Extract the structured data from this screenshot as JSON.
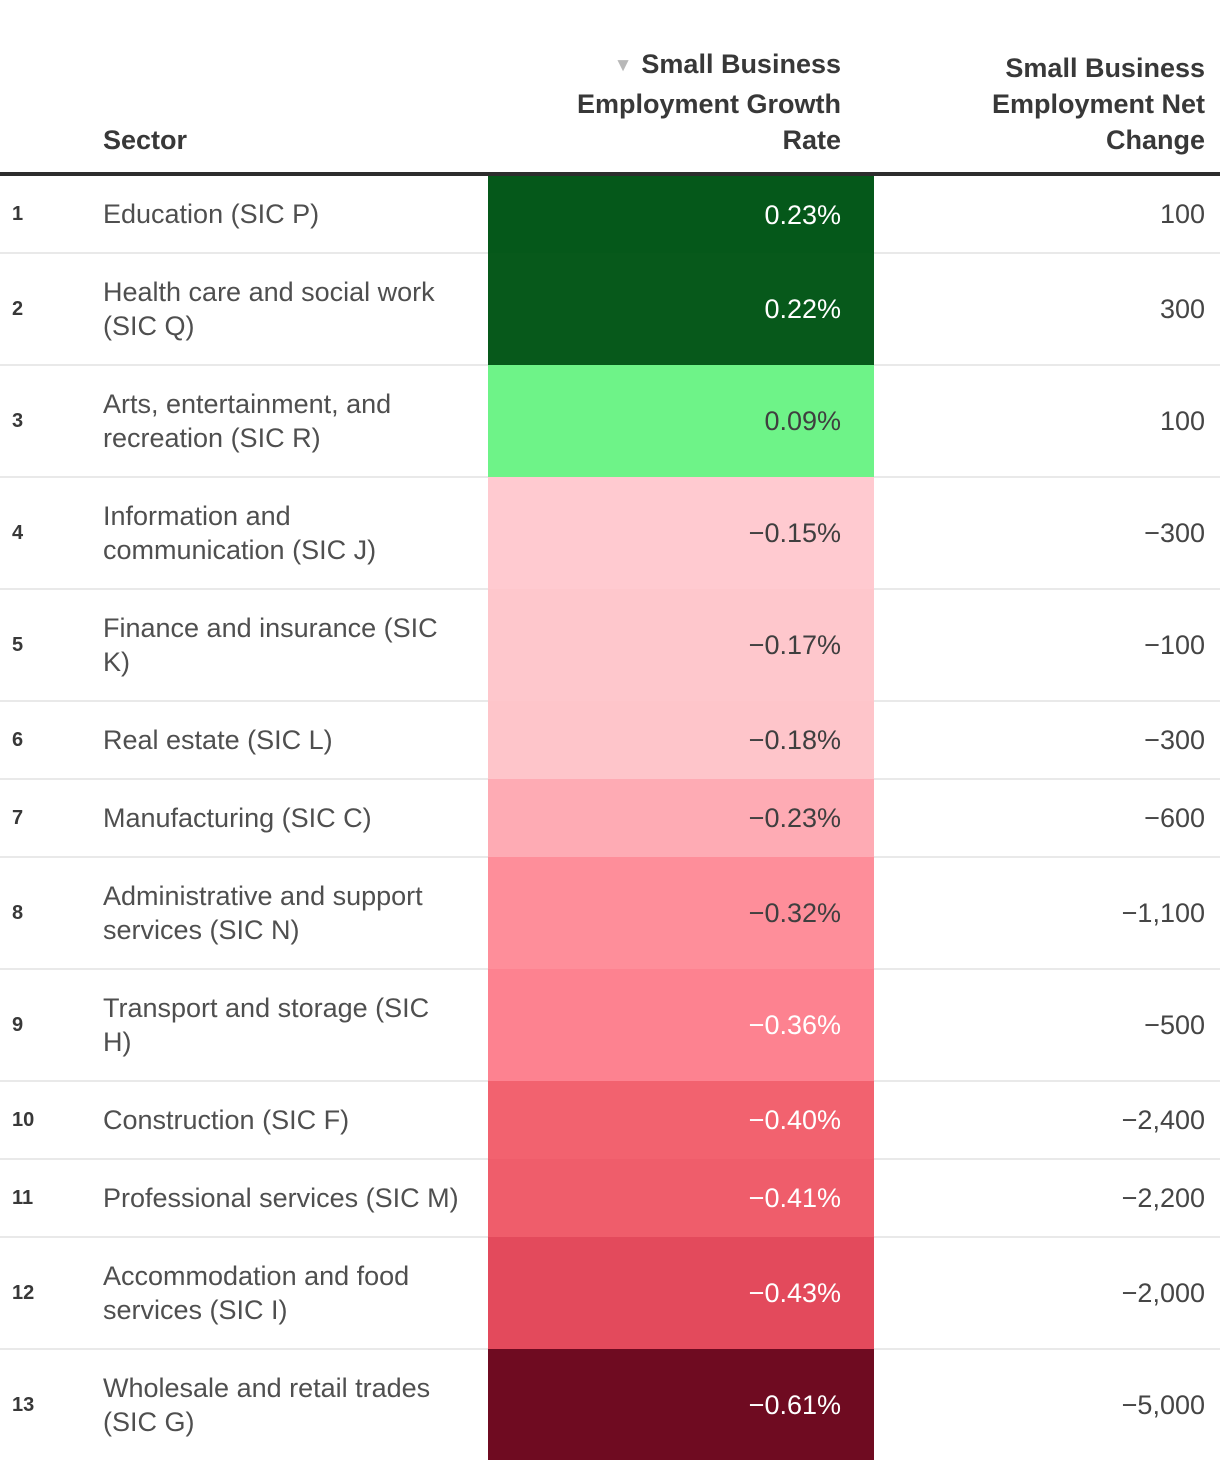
{
  "table": {
    "header": {
      "sector_label": "Sector",
      "growth_label": "Small Business Employment Growth Rate",
      "net_label": "Small Business Employment Net Change",
      "sort_icon": "▼",
      "sort_icon_color": "#b8b8b8"
    },
    "rows": [
      {
        "rank": "1",
        "sector": "Education (SIC P)",
        "growth": "0.23%",
        "net": "100",
        "bg": "#05581a",
        "fg": "#ffffff"
      },
      {
        "rank": "2",
        "sector": "Health care and social work (SIC Q)",
        "growth": "0.22%",
        "net": "300",
        "bg": "#07591b",
        "fg": "#ffffff"
      },
      {
        "rank": "3",
        "sector": "Arts, entertainment, and recreation (SIC R)",
        "growth": "0.09%",
        "net": "100",
        "bg": "#6ef388",
        "fg": "#3f3f3f"
      },
      {
        "rank": "4",
        "sector": "Information and communication (SIC J)",
        "growth": "−0.15%",
        "net": "−300",
        "bg": "#ffcad0",
        "fg": "#3f3f3f"
      },
      {
        "rank": "5",
        "sector": "Finance and insurance (SIC K)",
        "growth": "−0.17%",
        "net": "−100",
        "bg": "#fec7cc",
        "fg": "#3f3f3f"
      },
      {
        "rank": "6",
        "sector": "Real estate (SIC L)",
        "growth": "−0.18%",
        "net": "−300",
        "bg": "#fec5ca",
        "fg": "#3f3f3f"
      },
      {
        "rank": "7",
        "sector": "Manufacturing (SIC C)",
        "growth": "−0.23%",
        "net": "−600",
        "bg": "#feabb4",
        "fg": "#3f3f3f"
      },
      {
        "rank": "8",
        "sector": "Administrative and support services (SIC N)",
        "growth": "−0.32%",
        "net": "−1,100",
        "bg": "#fe8e9a",
        "fg": "#3f3f3f"
      },
      {
        "rank": "9",
        "sector": "Transport and storage (SIC H)",
        "growth": "−0.36%",
        "net": "−500",
        "bg": "#fd8290",
        "fg": "#ffffff"
      },
      {
        "rank": "10",
        "sector": "Construction (SIC F)",
        "growth": "−0.40%",
        "net": "−2,400",
        "bg": "#f2626f",
        "fg": "#ffffff"
      },
      {
        "rank": "11",
        "sector": "Professional services (SIC M)",
        "growth": "−0.41%",
        "net": "−2,200",
        "bg": "#ef5d6b",
        "fg": "#ffffff"
      },
      {
        "rank": "12",
        "sector": "Accommodation and food services (SIC I)",
        "growth": "−0.43%",
        "net": "−2,000",
        "bg": "#e34a5c",
        "fg": "#ffffff"
      },
      {
        "rank": "13",
        "sector": "Wholesale and retail trades (SIC G)",
        "growth": "−0.61%",
        "net": "−5,000",
        "bg": "#6f0b21",
        "fg": "#ffffff"
      }
    ]
  },
  "chart_data": {
    "type": "table",
    "title": "",
    "columns": [
      "Sector",
      "Small Business Employment Growth Rate",
      "Small Business Employment Net Change"
    ],
    "sort": {
      "column": "Small Business Employment Growth Rate",
      "order": "descending"
    },
    "color_scale": {
      "positive_max": "#05581a",
      "neutral": "#ffffff",
      "negative_max": "#6f0b21"
    },
    "rows": [
      {
        "sector": "Education (SIC P)",
        "growth_rate_pct": 0.23,
        "net_change": 100
      },
      {
        "sector": "Health care and social work (SIC Q)",
        "growth_rate_pct": 0.22,
        "net_change": 300
      },
      {
        "sector": "Arts, entertainment, and recreation (SIC R)",
        "growth_rate_pct": 0.09,
        "net_change": 100
      },
      {
        "sector": "Information and communication (SIC J)",
        "growth_rate_pct": -0.15,
        "net_change": -300
      },
      {
        "sector": "Finance and insurance (SIC K)",
        "growth_rate_pct": -0.17,
        "net_change": -100
      },
      {
        "sector": "Real estate (SIC L)",
        "growth_rate_pct": -0.18,
        "net_change": -300
      },
      {
        "sector": "Manufacturing (SIC C)",
        "growth_rate_pct": -0.23,
        "net_change": -600
      },
      {
        "sector": "Administrative and support services (SIC N)",
        "growth_rate_pct": -0.32,
        "net_change": -1100
      },
      {
        "sector": "Transport and storage (SIC H)",
        "growth_rate_pct": -0.36,
        "net_change": -500
      },
      {
        "sector": "Construction (SIC F)",
        "growth_rate_pct": -0.4,
        "net_change": -2400
      },
      {
        "sector": "Professional services (SIC M)",
        "growth_rate_pct": -0.41,
        "net_change": -2200
      },
      {
        "sector": "Accommodation and food services (SIC I)",
        "growth_rate_pct": -0.43,
        "net_change": -2000
      },
      {
        "sector": "Wholesale and retail trades (SIC G)",
        "growth_rate_pct": -0.61,
        "net_change": -5000
      }
    ]
  }
}
